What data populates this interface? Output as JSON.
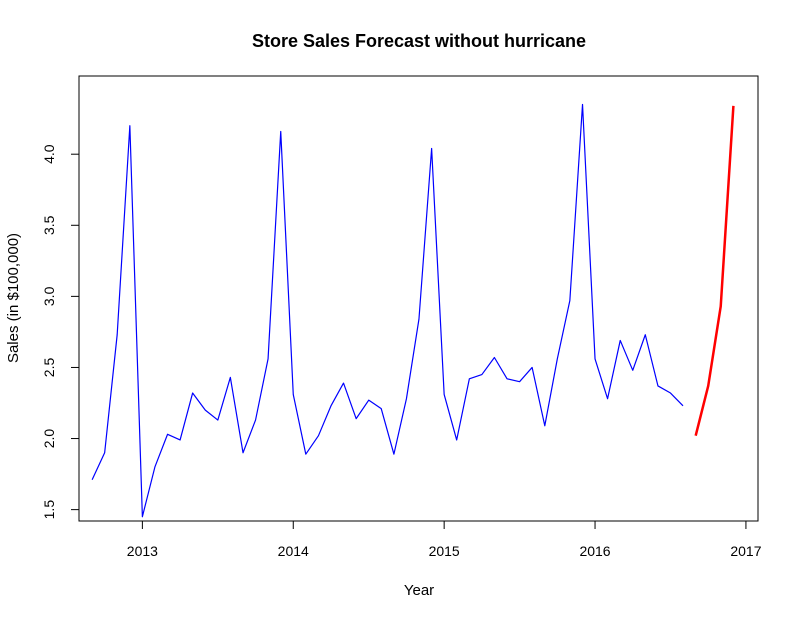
{
  "chart_data": {
    "type": "line",
    "title": "Store Sales Forecast without hurricane",
    "xlabel": "Year",
    "ylabel": "Sales (in $100,000)",
    "xlim": [
      2012.58,
      2017.08
    ],
    "ylim": [
      1.42,
      4.55
    ],
    "x_ticks": [
      2013,
      2014,
      2015,
      2016,
      2017
    ],
    "y_ticks": [
      "1.5",
      "2.0",
      "2.5",
      "3.0",
      "3.5",
      "4.0"
    ],
    "grid": false,
    "colors": {
      "history": "#0000ff",
      "forecast": "#ff0000"
    },
    "series": [
      {
        "x": [
          2012.667,
          2012.75,
          2012.833,
          2012.917,
          2013.0,
          2013.083,
          2013.167,
          2013.25,
          2013.333,
          2013.417,
          2013.5,
          2013.583,
          2013.667,
          2013.75,
          2013.833,
          2013.917,
          2014.0,
          2014.083,
          2014.167,
          2014.25,
          2014.333,
          2014.417,
          2014.5,
          2014.583,
          2014.667,
          2014.75,
          2014.833,
          2014.917,
          2015.0,
          2015.083,
          2015.167,
          2015.25,
          2015.333,
          2015.417,
          2015.5,
          2015.583,
          2015.667,
          2015.75,
          2015.833,
          2015.917,
          2016.0,
          2016.083,
          2016.167,
          2016.25,
          2016.333,
          2016.417,
          2016.5,
          2016.583
        ],
        "values": [
          1.71,
          1.9,
          2.73,
          4.2,
          1.45,
          1.8,
          2.03,
          1.99,
          2.32,
          2.2,
          2.13,
          2.43,
          1.9,
          2.13,
          2.56,
          4.16,
          2.31,
          1.89,
          2.02,
          2.23,
          2.39,
          2.14,
          2.27,
          2.21,
          1.89,
          2.28,
          2.84,
          4.04,
          2.31,
          1.99,
          2.42,
          2.45,
          2.57,
          2.42,
          2.4,
          2.5,
          2.09,
          2.56,
          2.97,
          4.35,
          2.56,
          2.28,
          2.69,
          2.48,
          2.73,
          2.37,
          2.32,
          2.23
        ]
      },
      {
        "x": [
          2016.667,
          2016.75,
          2016.833,
          2016.917
        ],
        "values": [
          2.02,
          2.37,
          2.93,
          4.34
        ]
      }
    ]
  }
}
